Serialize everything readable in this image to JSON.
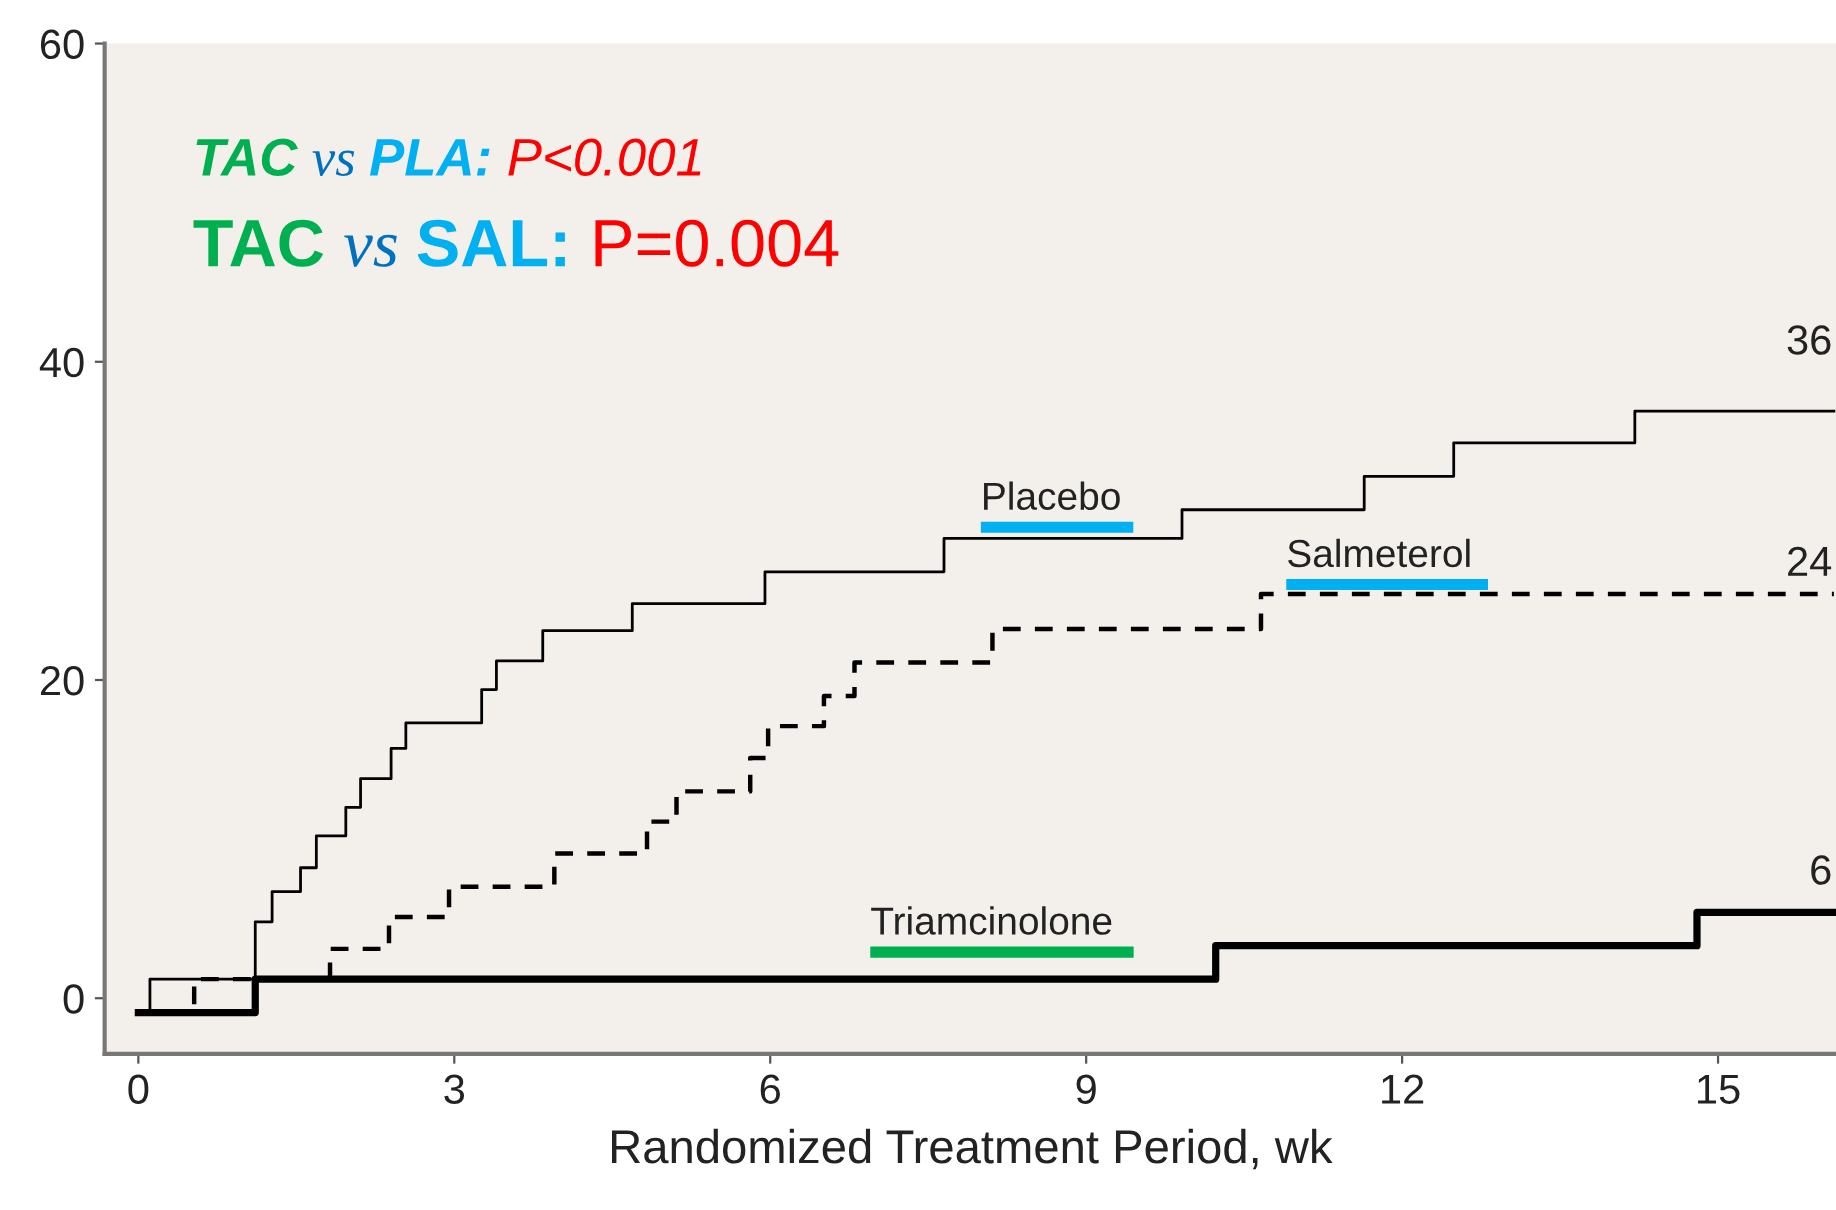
{
  "chart_data": {
    "type": "step",
    "xlabel": "Randomized Treatment Period, wk",
    "xlim": [
      -0.32,
      16.12
    ],
    "xticks": [
      0,
      3,
      6,
      9,
      12,
      15
    ],
    "ylim": [
      -3.5,
      60
    ],
    "yticks": [
      0,
      20,
      40,
      60
    ],
    "grid": false,
    "legend": false,
    "series": [
      {
        "name": "Placebo",
        "color": "#000000",
        "line_style": "solid",
        "x": [
          0,
          0.11,
          1.11,
          1.27,
          1.54,
          1.69,
          1.97,
          2.11,
          2.4,
          2.54,
          3.26,
          3.4,
          3.84,
          4.69,
          5.95,
          7.65,
          9.91,
          11.64,
          12.49,
          14.21,
          16.1
        ],
        "values": [
          -0.9,
          1.2,
          4.8,
          6.7,
          8.2,
          10.2,
          12.0,
          13.8,
          15.7,
          17.3,
          19.4,
          21.2,
          23.1,
          24.8,
          26.8,
          28.9,
          30.7,
          32.8,
          34.9,
          36.9,
          36.9
        ]
      },
      {
        "name": "Salmeterol",
        "color": "#000000",
        "line_style": "dashed",
        "x": [
          0,
          0.53,
          1.82,
          2.38,
          2.95,
          3.95,
          4.83,
          5.11,
          5.81,
          5.98,
          6.51,
          6.8,
          8.11,
          10.66,
          16.1
        ],
        "values": [
          -0.9,
          1.2,
          3.1,
          5.1,
          7.0,
          9.1,
          11.1,
          13.0,
          15.1,
          17.1,
          19.0,
          21.1,
          23.2,
          25.4,
          25.4
        ]
      },
      {
        "name": "Triamcinolone",
        "color": "#000000",
        "line_style": "solid",
        "x": [
          0,
          1.11,
          10.23,
          14.8,
          16.1
        ],
        "values": [
          -0.9,
          1.2,
          3.3,
          5.4,
          5.4
        ]
      }
    ],
    "annotations": [
      "TAC vs PLA: P<0.001",
      "TAC vs SAL: P=0.004",
      "36",
      "24",
      "6"
    ]
  }
}
